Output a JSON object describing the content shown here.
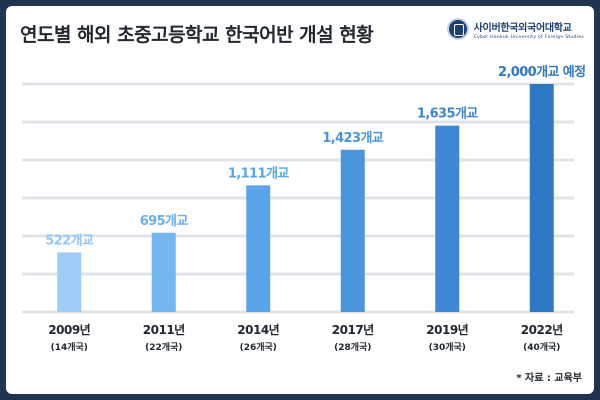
{
  "title": "연도별 해외 초중고등학교 한국어반 개설 현황",
  "logo": {
    "name_ko": "사이버한국외국어대학교",
    "name_en": "Cyber Hankuk University of Foreign Studies"
  },
  "source": "* 자료 : 교육부",
  "chart_data": {
    "type": "bar",
    "categories": [
      "2009년",
      "2011년",
      "2014년",
      "2017년",
      "2019년",
      "2022년"
    ],
    "sub_labels": [
      "(14개국)",
      "(22개국)",
      "(26개국)",
      "(28개국)",
      "(30개국)",
      "(40개국)"
    ],
    "values": [
      522,
      695,
      1111,
      1423,
      1635,
      2000
    ],
    "value_labels": [
      "522개교",
      "695개교",
      "1,111개교",
      "1,423개교",
      "1,635개교",
      "2,000개교 예정"
    ],
    "bar_colors": [
      "#9ccdf7",
      "#74b6f0",
      "#5aa5ea",
      "#4b95de",
      "#3e87d3",
      "#2f78c6"
    ],
    "label_colors": [
      "#8fc6f5",
      "#6aafee",
      "#58a2e8",
      "#4a93dc",
      "#3d85cf",
      "#2f78c6"
    ],
    "ylim": [
      0,
      2000
    ],
    "grid": true,
    "legend": "none"
  }
}
